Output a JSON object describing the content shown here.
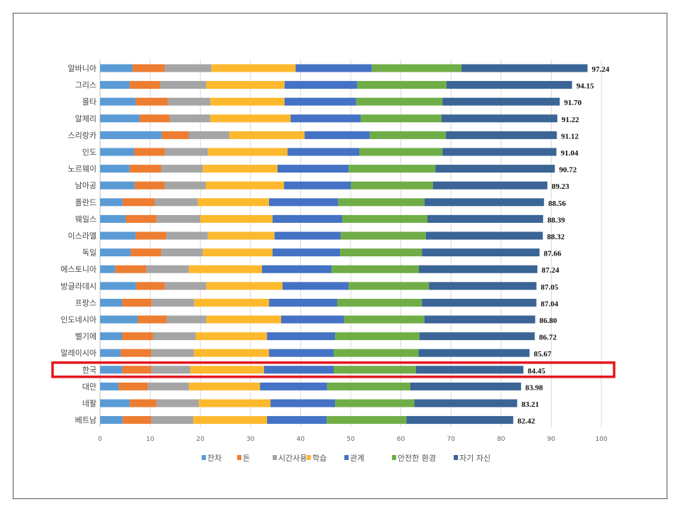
{
  "chart_data": {
    "type": "bar",
    "orientation": "horizontal",
    "stacked": true,
    "title": "",
    "xlabel": "",
    "ylabel": "",
    "xlim": [
      0,
      100
    ],
    "xticks": [
      "0",
      "10",
      "20",
      "30",
      "40",
      "50",
      "60",
      "70",
      "80",
      "90",
      "100"
    ],
    "grid": true,
    "legend_position": "bottom",
    "highlight_category": "한국",
    "categories": [
      "알바니아",
      "그리스",
      "몰타",
      "알제리",
      "스리랑카",
      "인도",
      "노르웨이",
      "남아공",
      "폴란드",
      "웨일스",
      "이스라엘",
      "독일",
      "에스토니아",
      "방글라데시",
      "프랑스",
      "인도네시아",
      "벨기에",
      "말레이시아",
      "한국",
      "대만",
      "네팔",
      "베트남"
    ],
    "totals": [
      "97.24",
      "94.15",
      "91.70",
      "91.22",
      "91.12",
      "91.04",
      "90.72",
      "89.23",
      "88.56",
      "88.39",
      "88.32",
      "87.66",
      "87.24",
      "87.05",
      "87.04",
      "86.80",
      "86.72",
      "85.67",
      "84.45",
      "83.98",
      "83.21",
      "82.42"
    ],
    "series": [
      {
        "name": "잔차",
        "color": "#5b9bd5",
        "values": [
          6.5,
          5.9,
          7.1,
          7.9,
          12.3,
          6.8,
          5.9,
          6.9,
          4.5,
          5.1,
          7.1,
          6.1,
          3.0,
          7.2,
          4.4,
          7.5,
          4.4,
          4.1,
          4.4,
          3.7,
          5.9,
          4.5
        ]
      },
      {
        "name": "돈",
        "color": "#ed7d31",
        "values": [
          6.4,
          6.1,
          6.4,
          6.0,
          5.4,
          6.1,
          6.3,
          6.0,
          6.4,
          6.2,
          6.1,
          6.1,
          6.2,
          5.7,
          5.9,
          5.8,
          6.2,
          6.1,
          5.8,
          5.8,
          5.4,
          5.7
        ]
      },
      {
        "name": "시간사용",
        "color": "#a5a5a5",
        "values": [
          9.3,
          9.2,
          8.5,
          8.1,
          8.1,
          8.6,
          8.3,
          8.2,
          8.6,
          8.7,
          8.3,
          8.3,
          8.5,
          8.3,
          8.5,
          7.9,
          8.5,
          8.5,
          7.8,
          8.2,
          8.4,
          8.4
        ]
      },
      {
        "name": "학습",
        "color": "#fdb92e",
        "values": [
          16.8,
          15.6,
          14.8,
          16.0,
          15.0,
          15.9,
          14.9,
          15.6,
          14.2,
          14.4,
          13.3,
          13.9,
          14.6,
          15.2,
          14.9,
          14.9,
          14.2,
          15.0,
          14.7,
          14.2,
          14.3,
          14.7
        ]
      },
      {
        "name": "관계",
        "color": "#4472c4",
        "values": [
          15.2,
          14.5,
          14.3,
          14.0,
          13.0,
          14.3,
          14.2,
          13.3,
          13.8,
          13.9,
          13.2,
          13.5,
          13.9,
          13.2,
          13.6,
          12.6,
          13.6,
          12.9,
          13.9,
          13.4,
          12.9,
          11.9
        ]
      },
      {
        "name": "안전한 환경",
        "color": "#70ad47",
        "values": [
          17.9,
          17.8,
          17.2,
          16.1,
          15.2,
          16.6,
          17.3,
          16.4,
          17.2,
          17.0,
          17.0,
          16.3,
          17.4,
          16.0,
          16.9,
          16.0,
          16.8,
          16.9,
          16.4,
          16.6,
          15.8,
          15.9
        ]
      },
      {
        "name": "자기 자신",
        "color": "#3a6596",
        "values": [
          25.14,
          25.05,
          23.4,
          23.12,
          22.12,
          22.74,
          23.82,
          22.83,
          23.86,
          23.09,
          23.32,
          23.46,
          23.64,
          21.45,
          22.84,
          22.1,
          23.02,
          22.17,
          21.45,
          22.08,
          20.51,
          21.32
        ]
      }
    ]
  }
}
